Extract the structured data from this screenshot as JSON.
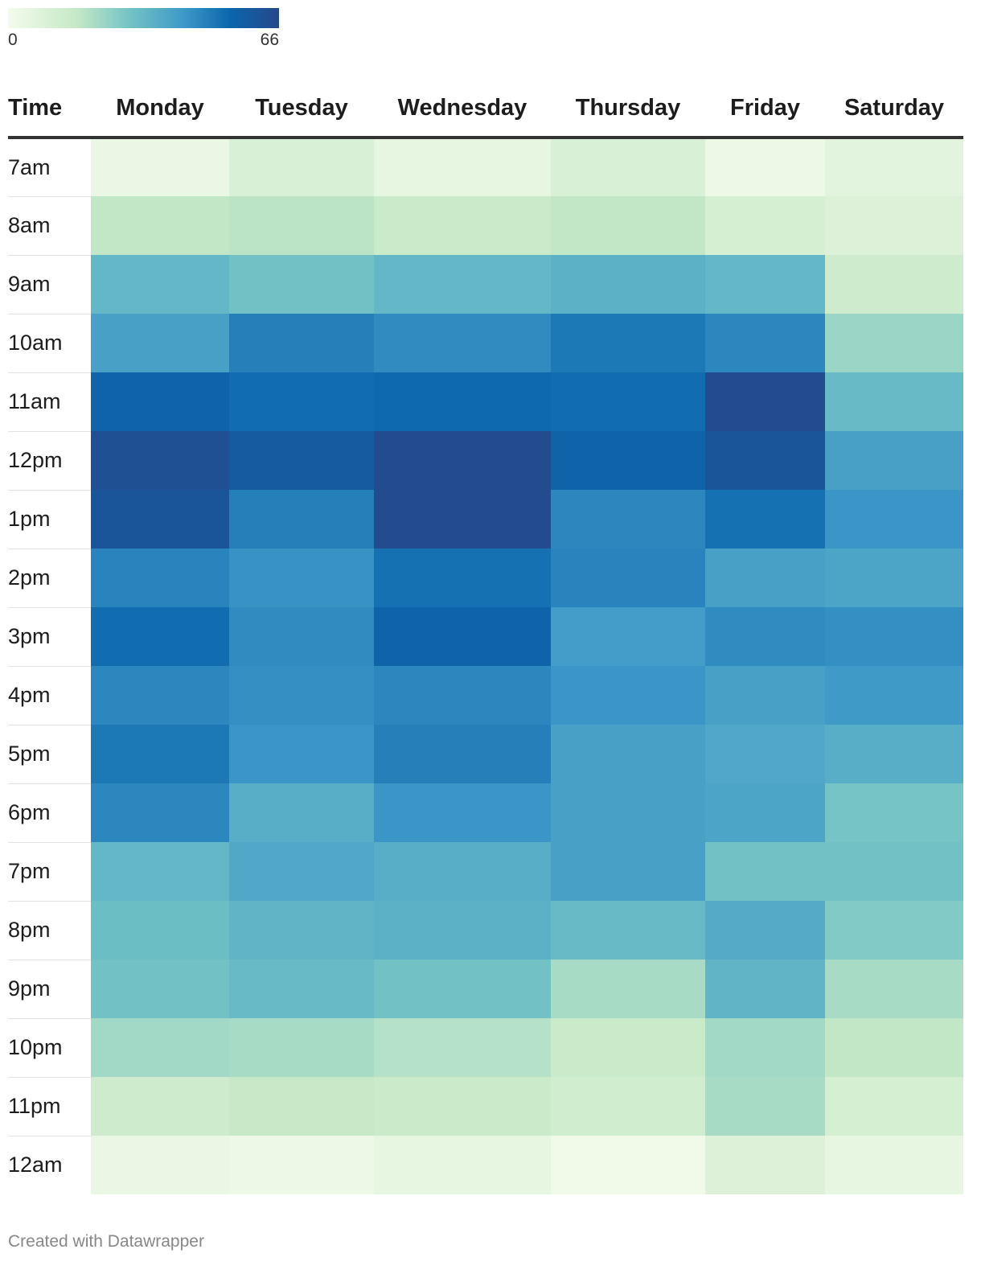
{
  "legend": {
    "min_label": "0",
    "max_label": "66",
    "min": 0,
    "max": 66
  },
  "chart_data": {
    "type": "heatmap",
    "title": "",
    "corner_label": "Time",
    "columns": [
      "Monday",
      "Tuesday",
      "Wednesday",
      "Thursday",
      "Friday",
      "Saturday"
    ],
    "rows": [
      "7am",
      "8am",
      "9am",
      "10am",
      "11am",
      "12pm",
      "1pm",
      "2pm",
      "3pm",
      "4pm",
      "5pm",
      "6pm",
      "7pm",
      "8pm",
      "9pm",
      "10pm",
      "11pm",
      "12am"
    ],
    "values": [
      [
        3,
        8,
        4,
        8,
        2,
        5
      ],
      [
        14,
        15,
        12,
        14,
        9,
        7
      ],
      [
        30,
        27,
        30,
        32,
        30,
        11
      ],
      [
        37,
        46,
        43,
        48,
        44,
        20
      ],
      [
        54,
        51,
        52,
        51,
        64,
        29
      ],
      [
        62,
        58,
        64,
        54,
        60,
        37
      ],
      [
        60,
        46,
        64,
        44,
        50,
        40
      ],
      [
        45,
        41,
        50,
        45,
        37,
        36
      ],
      [
        51,
        43,
        54,
        38,
        43,
        42
      ],
      [
        44,
        42,
        44,
        40,
        37,
        39
      ],
      [
        48,
        40,
        46,
        37,
        35,
        33
      ],
      [
        44,
        33,
        40,
        37,
        36,
        26
      ],
      [
        30,
        35,
        33,
        37,
        27,
        27
      ],
      [
        28,
        31,
        32,
        29,
        34,
        24
      ],
      [
        27,
        29,
        27,
        18,
        31,
        18
      ],
      [
        19,
        18,
        16,
        12,
        19,
        14
      ],
      [
        11,
        13,
        12,
        10,
        18,
        9
      ],
      [
        3,
        2,
        4,
        1,
        7,
        4
      ]
    ],
    "value_range": [
      0,
      66
    ],
    "color_scale": [
      "#f4fbec",
      "#c6e9c7",
      "#73c3c5",
      "#3d98c8",
      "#0b66ac",
      "#27478a"
    ],
    "credit": "Created with Datawrapper"
  }
}
